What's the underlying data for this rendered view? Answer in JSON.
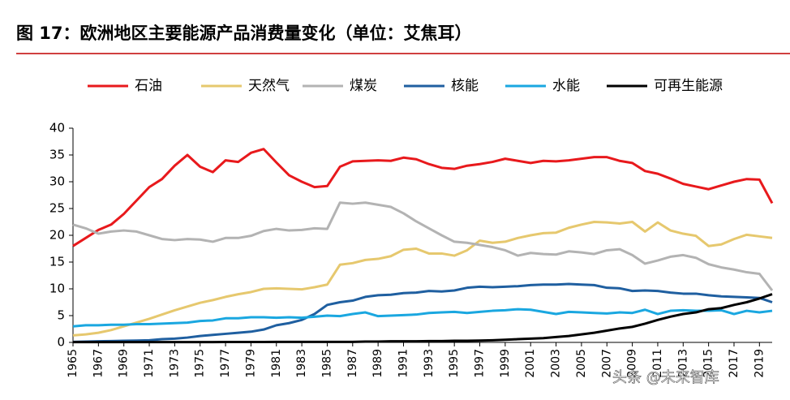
{
  "chart_data": {
    "type": "line",
    "title": "图 17：欧洲地区主要能源产品消费量变化（单位：艾焦耳）",
    "watermark": "头条 @未来智库",
    "x": [
      1965,
      1966,
      1967,
      1968,
      1969,
      1970,
      1971,
      1972,
      1973,
      1974,
      1975,
      1976,
      1977,
      1978,
      1979,
      1980,
      1981,
      1982,
      1983,
      1984,
      1985,
      1986,
      1987,
      1988,
      1989,
      1990,
      1991,
      1992,
      1993,
      1994,
      1995,
      1996,
      1997,
      1998,
      1999,
      2000,
      2001,
      2002,
      2003,
      2004,
      2005,
      2006,
      2007,
      2008,
      2009,
      2010,
      2011,
      2012,
      2013,
      2014,
      2015,
      2016,
      2017,
      2018,
      2019,
      2020
    ],
    "xlim": [
      1965,
      2020
    ],
    "xticks": [
      1965,
      1967,
      1969,
      1971,
      1973,
      1975,
      1977,
      1979,
      1981,
      1983,
      1985,
      1987,
      1989,
      1991,
      1993,
      1995,
      1997,
      1999,
      2001,
      2003,
      2005,
      2007,
      2009,
      2011,
      2013,
      2015,
      2017,
      2019
    ],
    "ylim": [
      0,
      40
    ],
    "yticks": [
      0,
      5,
      10,
      15,
      20,
      25,
      30,
      35,
      40
    ],
    "legend": "top",
    "series": [
      {
        "name": "石油",
        "color": "#e8191c",
        "values": [
          18,
          19.5,
          21,
          22,
          24,
          26.5,
          29,
          30.5,
          33,
          35,
          32.8,
          31.8,
          34,
          33.7,
          35.4,
          36.1,
          33.6,
          31.2,
          30,
          29,
          29.2,
          32.8,
          33.8,
          33.9,
          34,
          33.9,
          34.5,
          34.2,
          33.3,
          32.6,
          32.4,
          33,
          33.3,
          33.7,
          34.3,
          33.9,
          33.5,
          33.9,
          33.8,
          34,
          34.3,
          34.6,
          34.6,
          33.9,
          33.5,
          32,
          31.5,
          30.6,
          29.6,
          29.1,
          28.6,
          29.3,
          30,
          30.5,
          30.4,
          26
        ]
      },
      {
        "name": "天然气",
        "color": "#e6c86e",
        "values": [
          1.3,
          1.5,
          1.8,
          2.3,
          3,
          3.7,
          4.4,
          5.2,
          6.0,
          6.7,
          7.4,
          7.9,
          8.5,
          9.0,
          9.4,
          10,
          10.1,
          10.0,
          9.9,
          10.3,
          10.8,
          14.5,
          14.8,
          15.4,
          15.6,
          16.1,
          17.3,
          17.5,
          16.6,
          16.6,
          16.2,
          17.2,
          19,
          18.6,
          18.8,
          19.5,
          20,
          20.4,
          20.5,
          21.4,
          22,
          22.5,
          22.4,
          22.2,
          22.5,
          20.7,
          22.4,
          20.9,
          20.3,
          19.9,
          18,
          18.3,
          19.3,
          20.1,
          19.8,
          19.5
        ]
      },
      {
        "name": "煤炭",
        "color": "#b3b3b3",
        "values": [
          22,
          21.3,
          20.3,
          20.7,
          20.9,
          20.7,
          20,
          19.3,
          19.1,
          19.3,
          19.2,
          18.8,
          19.5,
          19.5,
          19.9,
          20.8,
          21.2,
          20.9,
          21,
          21.3,
          21.2,
          26.1,
          25.9,
          26.1,
          25.7,
          25.3,
          24.1,
          22.6,
          21.3,
          20,
          18.8,
          18.6,
          18.2,
          17.8,
          17.2,
          16.2,
          16.7,
          16.5,
          16.4,
          17,
          16.8,
          16.5,
          17.2,
          17.4,
          16.3,
          14.7,
          15.3,
          16,
          16.3,
          15.8,
          14.6,
          14,
          13.6,
          13.1,
          12.8,
          9.7
        ]
      },
      {
        "name": "核能",
        "color": "#1f5fa0",
        "values": [
          0.1,
          0.15,
          0.2,
          0.25,
          0.3,
          0.35,
          0.4,
          0.6,
          0.7,
          0.9,
          1.2,
          1.4,
          1.6,
          1.8,
          2.0,
          2.4,
          3.2,
          3.6,
          4.2,
          5.3,
          7.0,
          7.5,
          7.8,
          8.5,
          8.8,
          8.9,
          9.2,
          9.3,
          9.6,
          9.5,
          9.7,
          10.2,
          10.4,
          10.3,
          10.4,
          10.5,
          10.7,
          10.8,
          10.8,
          10.9,
          10.8,
          10.7,
          10.2,
          10.1,
          9.6,
          9.7,
          9.6,
          9.3,
          9.1,
          9.1,
          8.8,
          8.6,
          8.5,
          8.4,
          8.3,
          7.5
        ]
      },
      {
        "name": "水能",
        "color": "#1aa7e0",
        "values": [
          3.0,
          3.2,
          3.2,
          3.3,
          3.3,
          3.4,
          3.4,
          3.5,
          3.6,
          3.7,
          4.0,
          4.1,
          4.5,
          4.5,
          4.7,
          4.7,
          4.6,
          4.7,
          4.6,
          4.8,
          5.0,
          4.9,
          5.3,
          5.6,
          4.9,
          5.0,
          5.1,
          5.2,
          5.5,
          5.6,
          5.7,
          5.5,
          5.7,
          5.9,
          6.0,
          6.2,
          6.1,
          5.7,
          5.3,
          5.7,
          5.6,
          5.5,
          5.4,
          5.6,
          5.5,
          6.1,
          5.3,
          5.9,
          6.0,
          5.9,
          5.9,
          6.0,
          5.3,
          5.9,
          5.6,
          5.9
        ]
      },
      {
        "name": "可再生能源",
        "color": "#000000",
        "values": [
          0.05,
          0.05,
          0.05,
          0.05,
          0.05,
          0.05,
          0.05,
          0.05,
          0.05,
          0.05,
          0.06,
          0.06,
          0.07,
          0.07,
          0.08,
          0.08,
          0.09,
          0.09,
          0.1,
          0.1,
          0.1,
          0.1,
          0.1,
          0.15,
          0.15,
          0.2,
          0.2,
          0.2,
          0.25,
          0.25,
          0.3,
          0.3,
          0.35,
          0.4,
          0.5,
          0.6,
          0.7,
          0.8,
          1.0,
          1.2,
          1.5,
          1.8,
          2.2,
          2.6,
          2.9,
          3.5,
          4.2,
          4.8,
          5.3,
          5.6,
          6.2,
          6.4,
          7.0,
          7.5,
          8.2,
          9.0
        ]
      }
    ]
  }
}
